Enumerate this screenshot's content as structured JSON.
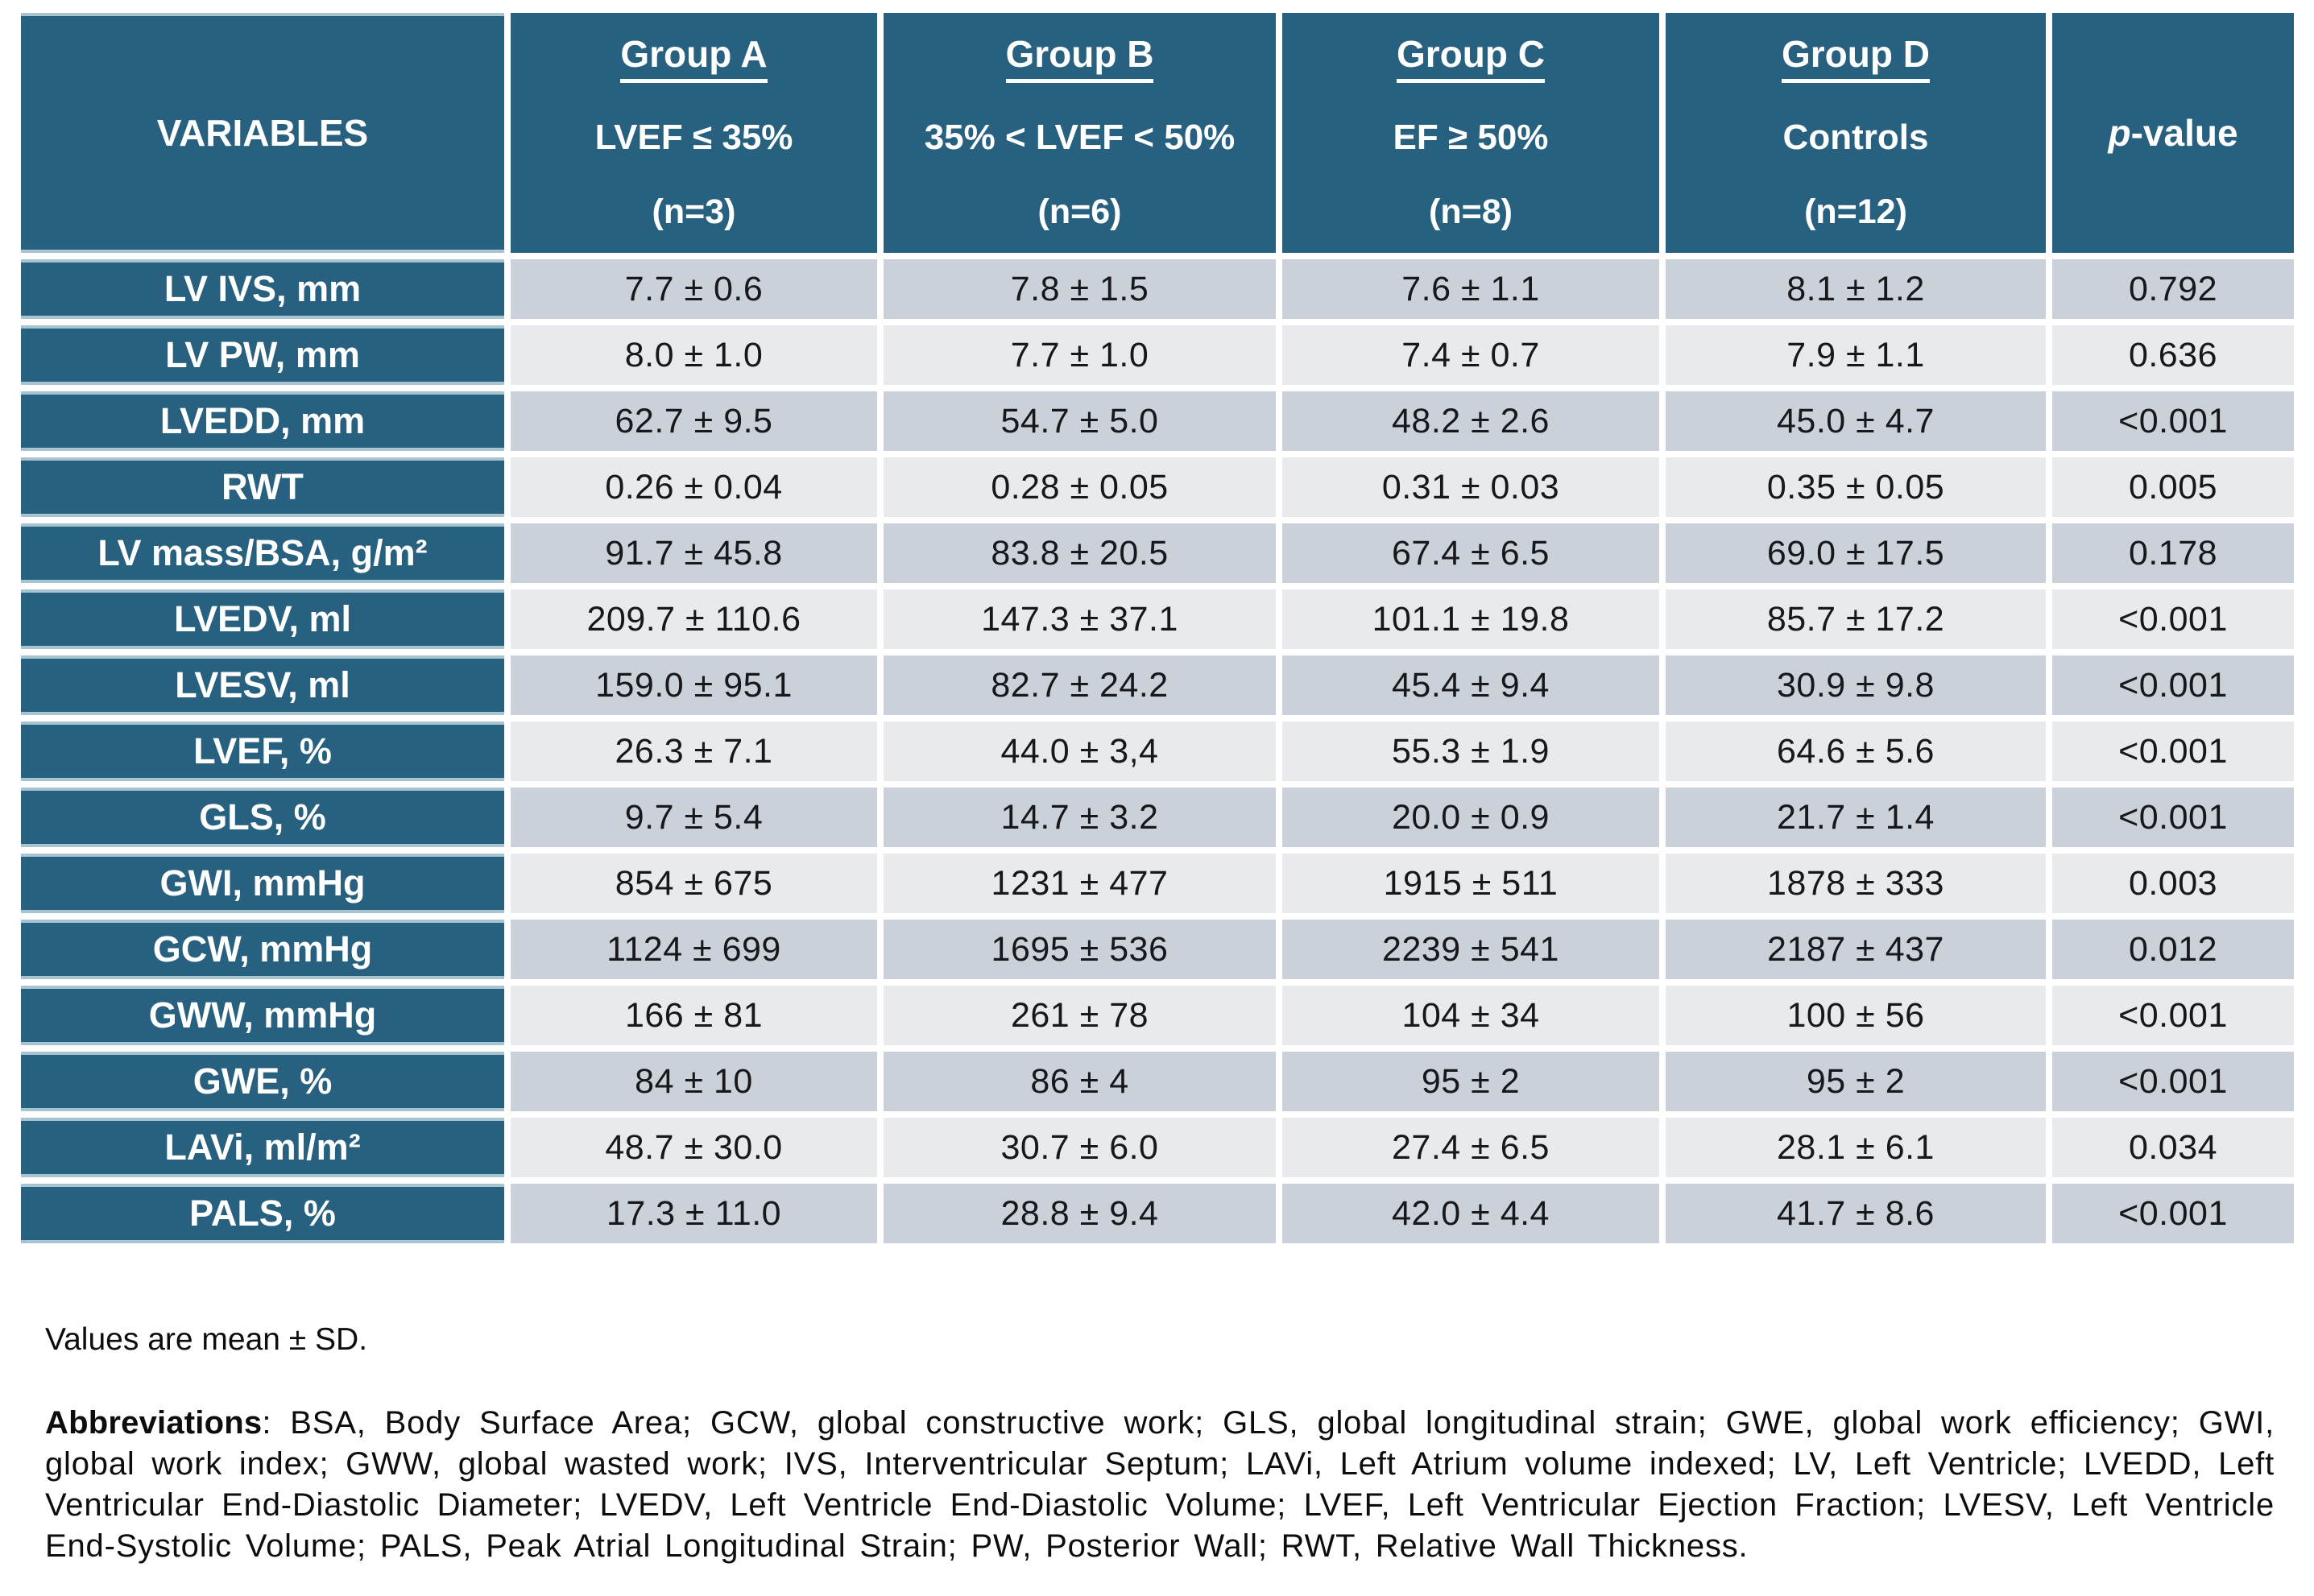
{
  "colors": {
    "header_blue": "#27617F",
    "separator_blue": "#A8C3D1",
    "row_stripe_dark": "#CBD1D8",
    "row_stripe_light": "#E8EAEE"
  },
  "table": {
    "header": {
      "variables": "VARIABLES",
      "groups": [
        {
          "name": "Group A",
          "criteria": "LVEF ≤ 35%",
          "n": "(n=3)"
        },
        {
          "name": "Group B",
          "criteria": "35% < LVEF < 50%",
          "n": "(n=6)"
        },
        {
          "name": "Group C",
          "criteria": "EF ≥ 50%",
          "n": "(n=8)"
        },
        {
          "name": "Group D",
          "criteria": "Controls",
          "n": "(n=12)"
        }
      ],
      "p_italic": "p",
      "p_rest": "-value"
    },
    "rows": [
      {
        "label": "LV IVS, mm",
        "values": [
          "7.7 ± 0.6",
          "7.8 ± 1.5",
          "7.6 ± 1.1",
          "8.1 ± 1.2",
          "0.792"
        ]
      },
      {
        "label": "LV PW, mm",
        "values": [
          "8.0 ± 1.0",
          "7.7 ± 1.0",
          "7.4 ± 0.7",
          "7.9 ± 1.1",
          "0.636"
        ]
      },
      {
        "label": "LVEDD, mm",
        "values": [
          "62.7 ± 9.5",
          "54.7 ± 5.0",
          "48.2 ± 2.6",
          "45.0 ± 4.7",
          "<0.001"
        ]
      },
      {
        "label": "RWT",
        "values": [
          "0.26 ± 0.04",
          "0.28 ± 0.05",
          "0.31 ± 0.03",
          "0.35 ± 0.05",
          "0.005"
        ]
      },
      {
        "label": "LV mass/BSA, g/m²",
        "values": [
          "91.7 ± 45.8",
          "83.8 ± 20.5",
          "67.4 ± 6.5",
          "69.0 ± 17.5",
          "0.178"
        ]
      },
      {
        "label": "LVEDV, ml",
        "values": [
          "209.7 ± 110.6",
          "147.3 ± 37.1",
          "101.1 ± 19.8",
          "85.7 ± 17.2",
          "<0.001"
        ]
      },
      {
        "label": "LVESV, ml",
        "values": [
          "159.0 ± 95.1",
          "82.7 ± 24.2",
          "45.4 ± 9.4",
          "30.9 ± 9.8",
          "<0.001"
        ]
      },
      {
        "label": "LVEF, %",
        "values": [
          "26.3 ± 7.1",
          "44.0 ± 3,4",
          "55.3 ± 1.9",
          "64.6 ± 5.6",
          "<0.001"
        ]
      },
      {
        "label": "GLS, %",
        "values": [
          "9.7 ± 5.4",
          "14.7 ± 3.2",
          "20.0 ± 0.9",
          "21.7 ± 1.4",
          "<0.001"
        ]
      },
      {
        "label": "GWI, mmHg",
        "values": [
          "854 ± 675",
          "1231 ± 477",
          "1915 ± 511",
          "1878 ± 333",
          "0.003"
        ]
      },
      {
        "label": "GCW, mmHg",
        "values": [
          "1124 ± 699",
          "1695 ± 536",
          "2239 ± 541",
          "2187 ± 437",
          "0.012"
        ]
      },
      {
        "label": "GWW, mmHg",
        "values": [
          "166 ± 81",
          "261 ± 78",
          "104 ± 34",
          "100 ± 56",
          "<0.001"
        ]
      },
      {
        "label": "GWE, %",
        "values": [
          "84 ± 10",
          "86 ± 4",
          "95 ± 2",
          "95 ± 2",
          "<0.001"
        ]
      },
      {
        "label": "LAVi, ml/m²",
        "values": [
          "48.7 ± 30.0",
          "30.7 ± 6.0",
          "27.4 ± 6.5",
          "28.1 ± 6.1",
          "0.034"
        ]
      },
      {
        "label": "PALS, %",
        "values": [
          "17.3 ± 11.0",
          "28.8 ± 9.4",
          "42.0 ± 4.4",
          "41.7 ± 8.6",
          "<0.001"
        ]
      }
    ]
  },
  "footnotes": {
    "values_note": "Values are mean ± SD.",
    "abbreviations_label": "Abbreviations",
    "abbreviations_text": ": BSA, Body Surface Area; GCW, global constructive work; GLS, global longitudinal strain; GWE, global work efficiency; GWI, global work index; GWW, global wasted work; IVS, Interventricular Septum; LAVi, Left Atrium volume indexed; LV, Left Ventricle; LVEDD, Left Ventricular End-Diastolic Diameter; LVEDV, Left Ventricle End-Diastolic Volume; LVEF, Left Ventricular Ejection Fraction; LVESV, Left Ventricle End-Systolic Volume; PALS, Peak Atrial Longitudinal Strain; PW, Posterior Wall; RWT, Relative Wall Thickness."
  }
}
